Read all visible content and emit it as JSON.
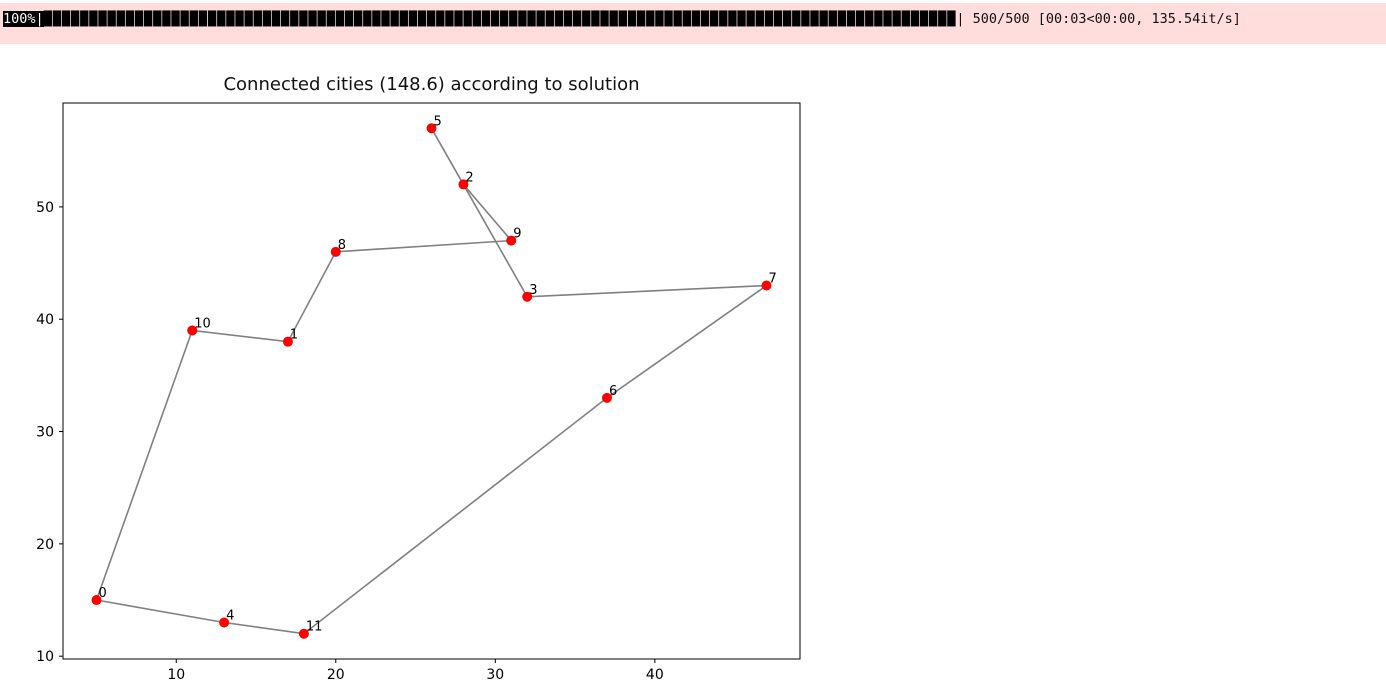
{
  "progress": {
    "prefix": "100%|",
    "bar": "████████████████████████████████████████████████████████████████████████████████████████████████████",
    "suffix": "| 500/500 [00:03<00:00, 135.54it/s]",
    "background": "#ffdddd",
    "bar_color": "#000000"
  },
  "chart_data": {
    "type": "scatter",
    "title": "Connected cities (148.6) according to solution",
    "xlabel": "",
    "ylabel": "",
    "xlim": [
      2.9,
      49.1
    ],
    "ylim": [
      9.75,
      59.25
    ],
    "xticks": [
      10,
      20,
      30,
      40
    ],
    "yticks": [
      10,
      20,
      30,
      40,
      50
    ],
    "grid": false,
    "legend": false,
    "marker_color": "#ff0000",
    "line_color": "#808080",
    "tour_length": 148.6,
    "cities": [
      {
        "id": 0,
        "x": 5,
        "y": 15
      },
      {
        "id": 1,
        "x": 17,
        "y": 38
      },
      {
        "id": 2,
        "x": 28,
        "y": 52
      },
      {
        "id": 3,
        "x": 32,
        "y": 42
      },
      {
        "id": 4,
        "x": 13,
        "y": 13
      },
      {
        "id": 5,
        "x": 26,
        "y": 57
      },
      {
        "id": 6,
        "x": 37,
        "y": 33
      },
      {
        "id": 7,
        "x": 47,
        "y": 43
      },
      {
        "id": 8,
        "x": 20,
        "y": 46
      },
      {
        "id": 9,
        "x": 31,
        "y": 47
      },
      {
        "id": 10,
        "x": 11,
        "y": 39
      },
      {
        "id": 11,
        "x": 18,
        "y": 12
      }
    ],
    "tour": [
      0,
      10,
      1,
      8,
      9,
      2,
      5,
      3,
      7,
      6,
      11,
      4,
      0
    ]
  }
}
